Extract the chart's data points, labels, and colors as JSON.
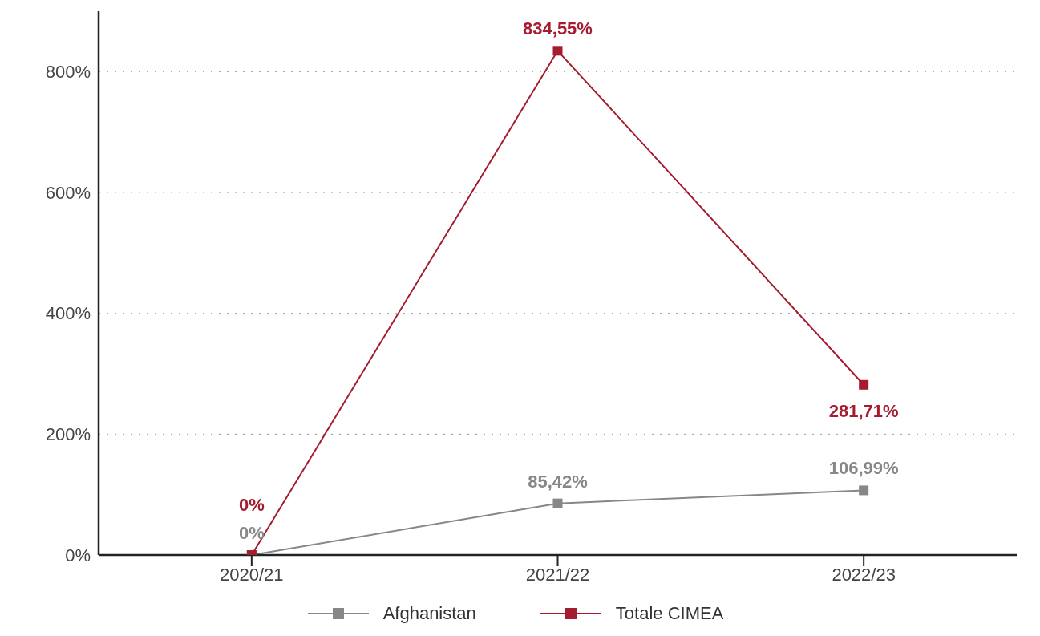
{
  "chart_data": {
    "type": "line",
    "categories": [
      "2020/21",
      "2021/22",
      "2022/23"
    ],
    "series": [
      {
        "name": "Afghanistan",
        "color": "#878787",
        "values": [
          0,
          85.42,
          106.99
        ],
        "value_labels": [
          "0%",
          "85,42%",
          "106,99%"
        ]
      },
      {
        "name": "Totale CIMEA",
        "color": "#a51c30",
        "values": [
          0,
          834.55,
          281.71
        ],
        "value_labels": [
          "0%",
          "834,55%",
          "281,71%"
        ]
      }
    ],
    "ylim": [
      0,
      900
    ],
    "yticks": [
      {
        "value": 0,
        "label": "0%"
      },
      {
        "value": 200,
        "label": "200%"
      },
      {
        "value": 400,
        "label": "400%"
      },
      {
        "value": 600,
        "label": "600%"
      },
      {
        "value": 800,
        "label": "800%"
      }
    ],
    "grid": "y",
    "legend": "bottom",
    "marker": "square",
    "line_style": "solid"
  }
}
